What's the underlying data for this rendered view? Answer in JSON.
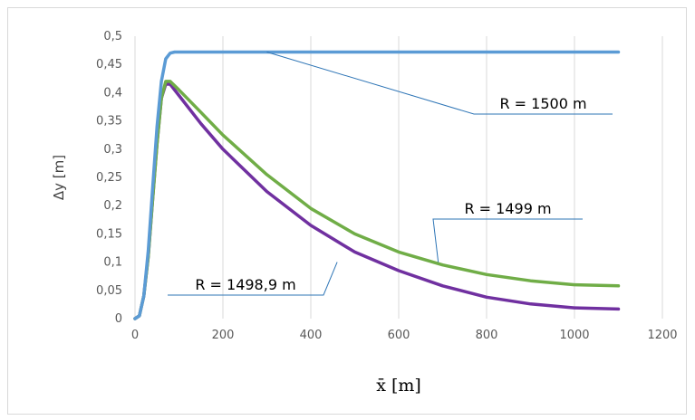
{
  "chart_data": {
    "type": "line",
    "xlabel": "x̄ [m]",
    "ylabel": "Δy [m]",
    "xlim": [
      0,
      1200
    ],
    "ylim": [
      0,
      0.5
    ],
    "x_ticks": [
      "0",
      "200",
      "400",
      "600",
      "800",
      "1000",
      "1200"
    ],
    "y_ticks": [
      "0",
      "0,05",
      "0,1",
      "0,15",
      "0,2",
      "0,25",
      "0,3",
      "0,35",
      "0,4",
      "0,45",
      "0,5"
    ],
    "grid": "vertical",
    "series": [
      {
        "name": "R = 1500 m",
        "color": "#5b9bd5",
        "x": [
          0,
          10,
          20,
          30,
          40,
          50,
          60,
          70,
          80,
          90,
          100,
          200,
          400,
          600,
          800,
          1000,
          1100
        ],
        "y": [
          0,
          0.005,
          0.04,
          0.12,
          0.23,
          0.34,
          0.42,
          0.46,
          0.47,
          0.472,
          0.472,
          0.472,
          0.472,
          0.472,
          0.472,
          0.472,
          0.472
        ]
      },
      {
        "name": "R = 1499 m",
        "color": "#70ad47",
        "x": [
          0,
          10,
          20,
          30,
          40,
          50,
          60,
          70,
          80,
          100,
          150,
          200,
          300,
          400,
          500,
          600,
          700,
          800,
          900,
          1000,
          1100
        ],
        "y": [
          0,
          0.005,
          0.04,
          0.11,
          0.21,
          0.31,
          0.39,
          0.42,
          0.42,
          0.405,
          0.365,
          0.325,
          0.255,
          0.195,
          0.15,
          0.118,
          0.095,
          0.078,
          0.067,
          0.06,
          0.058
        ]
      },
      {
        "name": "R = 1498,9 m",
        "color": "#7030a0",
        "x": [
          0,
          10,
          20,
          30,
          40,
          50,
          60,
          70,
          80,
          100,
          150,
          200,
          300,
          400,
          500,
          600,
          700,
          800,
          900,
          1000,
          1100
        ],
        "y": [
          0,
          0.005,
          0.04,
          0.11,
          0.21,
          0.31,
          0.39,
          0.415,
          0.415,
          0.395,
          0.345,
          0.3,
          0.225,
          0.165,
          0.118,
          0.085,
          0.058,
          0.038,
          0.026,
          0.019,
          0.017
        ]
      }
    ],
    "annotations": [
      {
        "text": "R = 1500 m",
        "series": 0,
        "anchor_x": 300,
        "anchor_y": 0.472
      },
      {
        "text": "R = 1499 m",
        "series": 1,
        "anchor_x": 690,
        "anchor_y": 0.1
      },
      {
        "text": "R = 1498,9 m",
        "series": 2,
        "anchor_x": 460,
        "anchor_y": 0.1
      }
    ]
  }
}
